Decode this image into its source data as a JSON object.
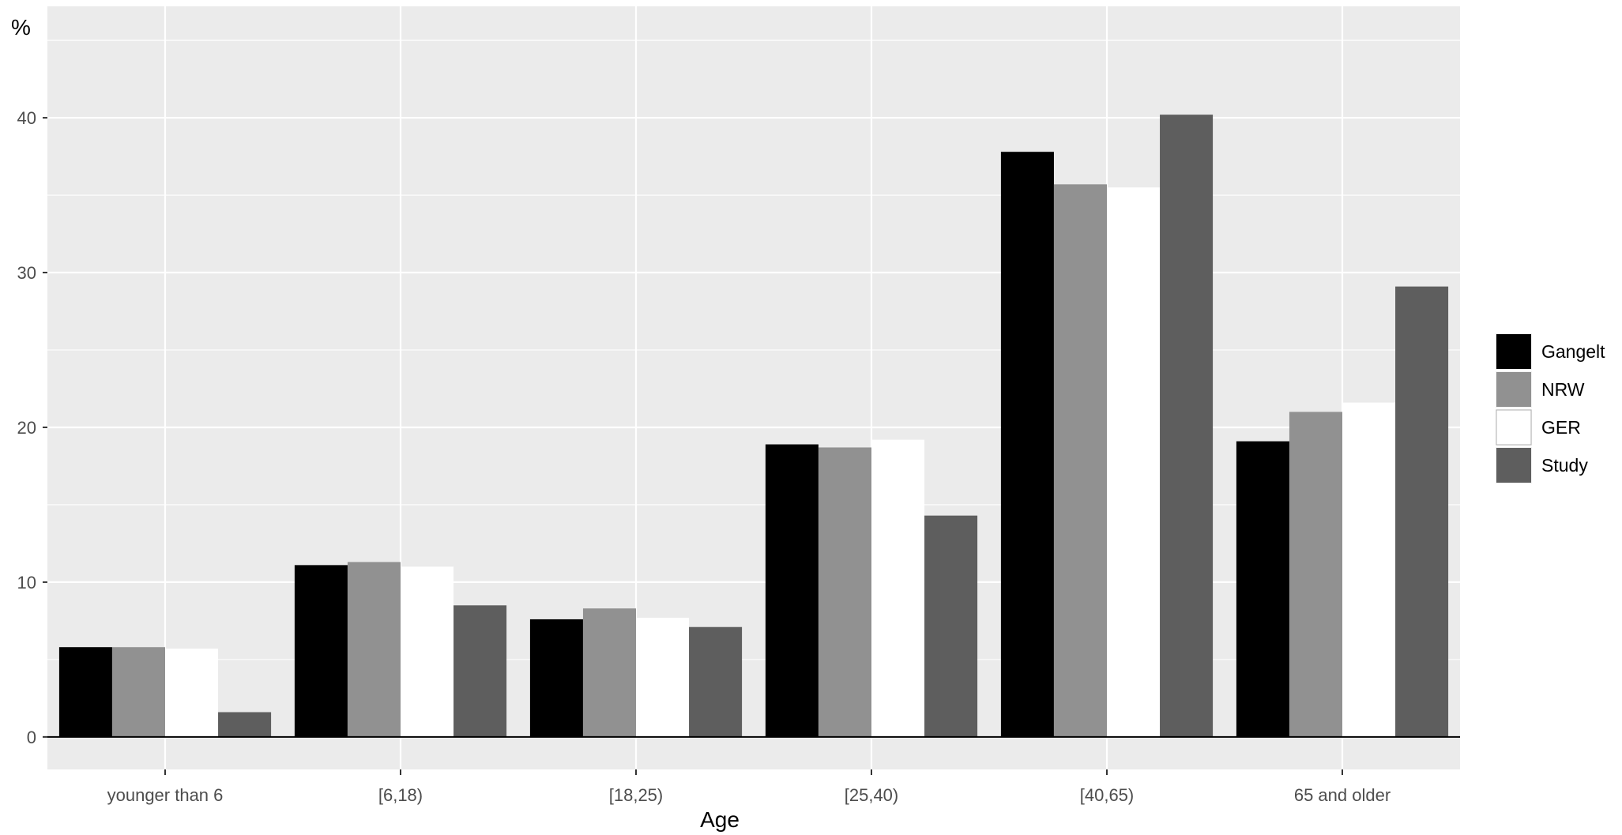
{
  "chart_data": {
    "type": "bar",
    "ylabel": "%",
    "xlabel": "Age",
    "categories": [
      "younger than 6",
      "[6,18)",
      "[18,25)",
      "[25,40)",
      "[40,65)",
      "65 and older"
    ],
    "series": [
      {
        "name": "Gangelt",
        "values": [
          5.8,
          11.1,
          7.6,
          18.9,
          37.8,
          19.1
        ]
      },
      {
        "name": "NRW",
        "values": [
          5.8,
          11.3,
          8.3,
          18.7,
          35.7,
          21.0
        ]
      },
      {
        "name": "GER",
        "values": [
          5.7,
          11.0,
          7.7,
          19.2,
          35.5,
          21.6
        ]
      },
      {
        "name": "Study",
        "values": [
          1.6,
          8.5,
          7.1,
          14.3,
          40.2,
          29.1
        ]
      }
    ],
    "ylim": [
      -2.1,
      47.2
    ],
    "yticks": [
      0,
      10,
      20,
      30,
      40
    ],
    "grid": true,
    "legend_position": "right",
    "colors": {
      "Gangelt": "#000000",
      "NRW": "#919191",
      "GER": "#ffffff",
      "Study": "#5e5e5e"
    },
    "panel_background": "#ebebeb",
    "grid_color": "#ffffff"
  }
}
